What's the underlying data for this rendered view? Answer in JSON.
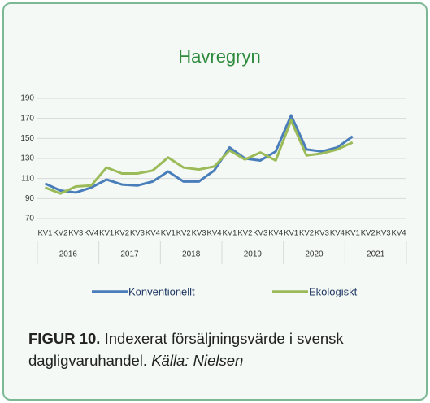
{
  "chart_data": {
    "type": "line",
    "title": "Havregryn",
    "categories": [
      "KV1",
      "KV2",
      "KV3",
      "KV4",
      "KV1",
      "KV2",
      "KV3",
      "KV4",
      "KV1",
      "KV2",
      "KV3",
      "KV4",
      "KV1",
      "KV2",
      "KV3",
      "KV4",
      "KV1",
      "KV2",
      "KV3",
      "KV4",
      "KV1",
      "KV2",
      "KV3",
      "KV4"
    ],
    "groups": [
      "2016",
      "2017",
      "2018",
      "2019",
      "2020",
      "2021"
    ],
    "series": [
      {
        "name": "Konventionellt",
        "color": "#4a7ebb",
        "values": [
          105,
          98,
          96,
          101,
          109,
          104,
          103,
          107,
          117,
          107,
          107,
          118,
          141,
          130,
          128,
          137,
          173,
          139,
          137,
          141,
          152,
          null,
          null,
          null
        ]
      },
      {
        "name": "Ekologiskt",
        "color": "#9bbb59",
        "values": [
          101,
          95,
          102,
          103,
          121,
          115,
          115,
          118,
          131,
          121,
          119,
          122,
          138,
          129,
          136,
          128,
          168,
          133,
          135,
          139,
          146,
          null,
          null,
          null
        ]
      }
    ],
    "ylim": [
      70,
      190
    ],
    "yticks": [
      70,
      90,
      110,
      130,
      150,
      170,
      190
    ],
    "grid": true
  },
  "caption": {
    "label": "FIGUR 10.",
    "text": "Indexerat försäljningsvärde i svensk dagligvaruhandel.",
    "source": "Källa: Nielsen"
  }
}
